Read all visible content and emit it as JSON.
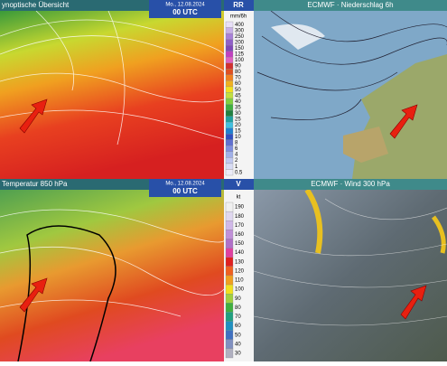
{
  "panels": [
    {
      "title": "ynoptische Übersicht",
      "date": "Mo., 12.08.2024",
      "time": "00 UTC",
      "legend": {
        "title": "RR",
        "unit": "mm/6h",
        "labels": [
          "400",
          "300",
          "250",
          "200",
          "150",
          "125",
          "100",
          "90",
          "80",
          "70",
          "60",
          "50",
          "45",
          "40",
          "35",
          "30",
          "25",
          "20",
          "15",
          "10",
          "8",
          "6",
          "4",
          "2",
          "1",
          "0.5"
        ]
      }
    },
    {
      "title": "ECMWF · Niederschlag 6h"
    },
    {
      "title": "Temperatur 850 hPa",
      "date": "Mo., 12.08.2024",
      "time": "00 UTC",
      "legend": {
        "title": "V",
        "unit": "kt",
        "labels": [
          "190",
          "180",
          "170",
          "160",
          "150",
          "140",
          "130",
          "120",
          "110",
          "100",
          "90",
          "80",
          "70",
          "60",
          "50",
          "40",
          "30"
        ]
      }
    },
    {
      "title": "ECMWF · Wind 300 hPa"
    }
  ]
}
